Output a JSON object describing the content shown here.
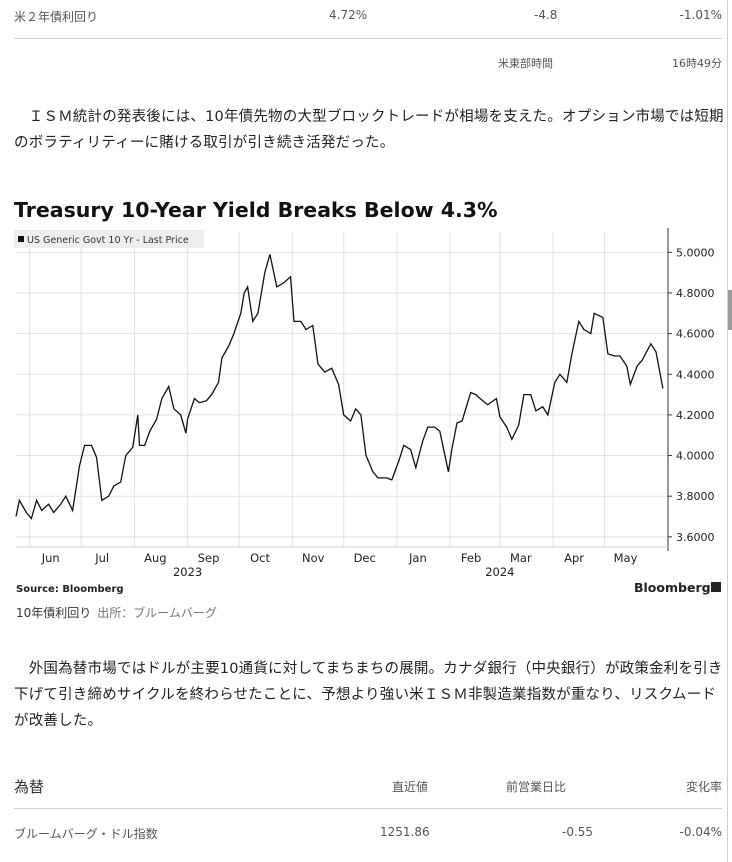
{
  "top_row": {
    "label": "米２年債利回り",
    "value": "4.72%",
    "change": "-4.8",
    "pct": "-1.01%"
  },
  "time_note": {
    "tz": "米東部時間",
    "time": "16時49分"
  },
  "paragraph1": "　ＩＳＭ統計の発表後には、10年債先物の大型ブロックトレードが相場を支えた。オプション市場では短期のボラティリティーに賭ける取引が引き続き活発だった。",
  "chart_title": "Treasury 10-Year Yield Breaks Below 4.3%",
  "chart_data": {
    "type": "line",
    "title": "Treasury 10-Year Yield Breaks Below 4.3%",
    "legend": "US Generic Govt 10 Yr - Last Price",
    "legend_placement": "top-left",
    "source": "Source: Bloomberg",
    "brand": "Bloomberg",
    "ylim": [
      3.55,
      5.1
    ],
    "y_ticks": [
      "3.6000",
      "3.8000",
      "4.0000",
      "4.2000",
      "4.4000",
      "4.6000",
      "4.8000",
      "5.0000"
    ],
    "y_tick_values": [
      3.6,
      3.8,
      4.0,
      4.2,
      4.4,
      4.6,
      4.8,
      5.0
    ],
    "x_ticks": [
      "Jun",
      "Jul",
      "Aug",
      "Sep",
      "Oct",
      "Nov",
      "Dec",
      "Jan",
      "Feb",
      "Mar",
      "Apr",
      "May"
    ],
    "x_tick_dates": [
      "2023-06-01",
      "2023-07-01",
      "2023-08-01",
      "2023-09-01",
      "2023-10-01",
      "2023-11-01",
      "2023-12-01",
      "2024-01-01",
      "2024-02-01",
      "2024-03-01",
      "2024-04-01",
      "2024-05-01"
    ],
    "year_labels": [
      {
        "label": "2023",
        "date": "2023-09-01"
      },
      {
        "label": "2024",
        "date": "2024-03-01"
      }
    ],
    "xlim": [
      "2023-05-24",
      "2024-06-07"
    ],
    "series": [
      {
        "x": [
          "2023-05-24",
          "2023-05-26",
          "2023-05-30",
          "2023-06-02",
          "2023-06-05",
          "2023-06-08",
          "2023-06-12",
          "2023-06-15",
          "2023-06-19",
          "2023-06-22",
          "2023-06-26",
          "2023-06-28",
          "2023-06-30",
          "2023-07-03",
          "2023-07-06",
          "2023-07-07",
          "2023-07-10",
          "2023-07-13",
          "2023-07-17",
          "2023-07-20",
          "2023-07-24",
          "2023-07-27",
          "2023-07-31",
          "2023-08-03",
          "2023-08-04",
          "2023-08-07",
          "2023-08-10",
          "2023-08-14",
          "2023-08-17",
          "2023-08-21",
          "2023-08-24",
          "2023-08-28",
          "2023-08-31",
          "2023-09-01",
          "2023-09-05",
          "2023-09-08",
          "2023-09-12",
          "2023-09-15",
          "2023-09-19",
          "2023-09-21",
          "2023-09-25",
          "2023-09-28",
          "2023-10-02",
          "2023-10-04",
          "2023-10-06",
          "2023-10-09",
          "2023-10-12",
          "2023-10-16",
          "2023-10-19",
          "2023-10-23",
          "2023-10-27",
          "2023-10-31",
          "2023-11-02",
          "2023-11-06",
          "2023-11-09",
          "2023-11-13",
          "2023-11-16",
          "2023-11-20",
          "2023-11-24",
          "2023-11-28",
          "2023-12-01",
          "2023-12-05",
          "2023-12-08",
          "2023-12-11",
          "2023-12-14",
          "2023-12-18",
          "2023-12-21",
          "2023-12-26",
          "2023-12-29",
          "2024-01-02",
          "2024-01-05",
          "2024-01-09",
          "2024-01-12",
          "2024-01-16",
          "2024-01-19",
          "2024-01-23",
          "2024-01-26",
          "2024-01-31",
          "2024-02-02",
          "2024-02-05",
          "2024-02-08",
          "2024-02-13",
          "2024-02-16",
          "2024-02-20",
          "2024-02-23",
          "2024-02-28",
          "2024-03-01",
          "2024-03-05",
          "2024-03-08",
          "2024-03-12",
          "2024-03-15",
          "2024-03-19",
          "2024-03-22",
          "2024-03-26",
          "2024-03-29",
          "2024-04-02",
          "2024-04-05",
          "2024-04-09",
          "2024-04-12",
          "2024-04-16",
          "2024-04-19",
          "2024-04-23",
          "2024-04-25",
          "2024-04-30",
          "2024-05-03",
          "2024-05-07",
          "2024-05-10",
          "2024-05-14",
          "2024-05-16",
          "2024-05-20",
          "2024-05-23",
          "2024-05-28",
          "2024-05-31",
          "2024-06-04"
        ],
        "y": [
          3.7,
          3.78,
          3.72,
          3.69,
          3.78,
          3.73,
          3.76,
          3.72,
          3.76,
          3.8,
          3.73,
          3.84,
          3.95,
          4.05,
          4.05,
          4.05,
          3.99,
          3.78,
          3.8,
          3.85,
          3.87,
          4.0,
          4.04,
          4.2,
          4.05,
          4.05,
          4.12,
          4.18,
          4.28,
          4.34,
          4.23,
          4.2,
          4.11,
          4.18,
          4.28,
          4.26,
          4.27,
          4.3,
          4.36,
          4.48,
          4.54,
          4.6,
          4.7,
          4.8,
          4.83,
          4.66,
          4.7,
          4.9,
          4.99,
          4.83,
          4.85,
          4.88,
          4.66,
          4.66,
          4.62,
          4.64,
          4.45,
          4.41,
          4.43,
          4.35,
          4.2,
          4.17,
          4.23,
          4.2,
          4.0,
          3.92,
          3.89,
          3.89,
          3.88,
          3.97,
          4.05,
          4.03,
          3.94,
          4.07,
          4.14,
          4.14,
          4.12,
          3.92,
          4.03,
          4.16,
          4.17,
          4.31,
          4.3,
          4.27,
          4.25,
          4.28,
          4.19,
          4.14,
          4.08,
          4.15,
          4.3,
          4.3,
          4.22,
          4.24,
          4.2,
          4.36,
          4.4,
          4.36,
          4.5,
          4.66,
          4.62,
          4.6,
          4.7,
          4.68,
          4.5,
          4.49,
          4.49,
          4.44,
          4.35,
          4.44,
          4.47,
          4.55,
          4.51,
          4.33
        ]
      }
    ]
  },
  "chart_caption": {
    "title": "10年債利回り",
    "source": "出所：ブルームバーグ"
  },
  "paragraph2": "　外国為替市場ではドルが主要10通貨に対してまちまちの展開。カナダ銀行（中央銀行）が政策金利を引き下げて引き締めサイクルを終わらせたことに、予想より強い米ＩＳＭ非製造業指数が重なり、リスクムードが改善した。",
  "fx_table": {
    "title": "為替",
    "columns": [
      "直近値",
      "前営業日比",
      "変化率"
    ],
    "rows": [
      {
        "name": "ブルームバーグ・ドル指数",
        "last": "1251.86",
        "change": "-0.55",
        "pct": "-0.04%"
      }
    ]
  }
}
